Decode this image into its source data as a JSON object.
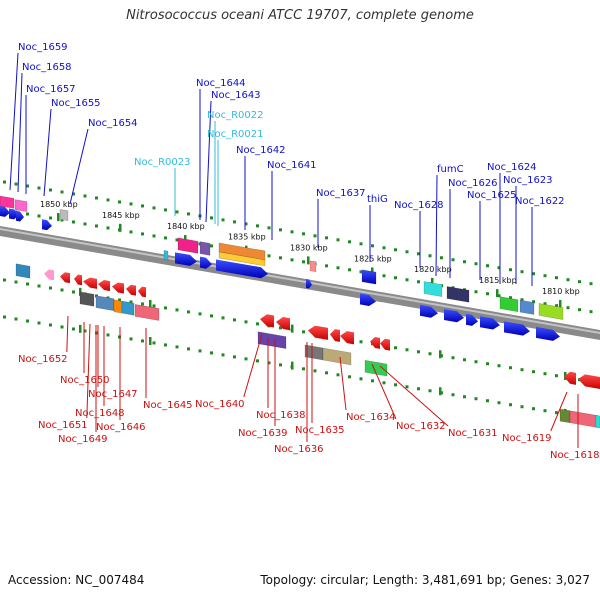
{
  "title": "Nitrosococcus oceani ATCC 19707, complete genome",
  "footer": {
    "accession": "Accession: NC_007484",
    "topology": "Topology: circular; Length: 3,481,691 bp; Genes: 3,027"
  },
  "colors": {
    "top_gene_labels": "#1010cc",
    "rna_labels": "#33bbdd",
    "bottom_gene_labels": "#cc1111",
    "tick_green": "#228822",
    "backbone": "#777777"
  },
  "scale": {
    "unit": "kbp",
    "ticks": [
      "1850 kbp",
      "1845 kbp",
      "1840 kbp",
      "1835 kbp",
      "1830 kbp",
      "1825 kbp",
      "1820 kbp",
      "1815 kbp",
      "1810 kbp"
    ]
  },
  "top_labels": [
    "Noc_1659",
    "Noc_1658",
    "Noc_1657",
    "Noc_1655",
    "Noc_1654",
    "Noc_R0023",
    "Noc_1644",
    "Noc_1643",
    "Noc_R0022",
    "Noc_R0021",
    "Noc_1642",
    "Noc_1641",
    "Noc_1637",
    "thiG",
    "Noc_1628",
    "fumC",
    "Noc_1626",
    "Noc_1625",
    "Noc_1624",
    "Noc_1623",
    "Noc_1622"
  ],
  "bottom_labels": [
    "Noc_1652",
    "Noc_1650",
    "Noc_1647",
    "Noc_1648",
    "Noc_1651",
    "Noc_1646",
    "Noc_1649",
    "Noc_1645",
    "Noc_1640",
    "Noc_1638",
    "Noc_1639",
    "Noc_1635",
    "Noc_1636",
    "Noc_1634",
    "Noc_1632",
    "Noc_1631",
    "Noc_1619",
    "Noc_1618"
  ]
}
